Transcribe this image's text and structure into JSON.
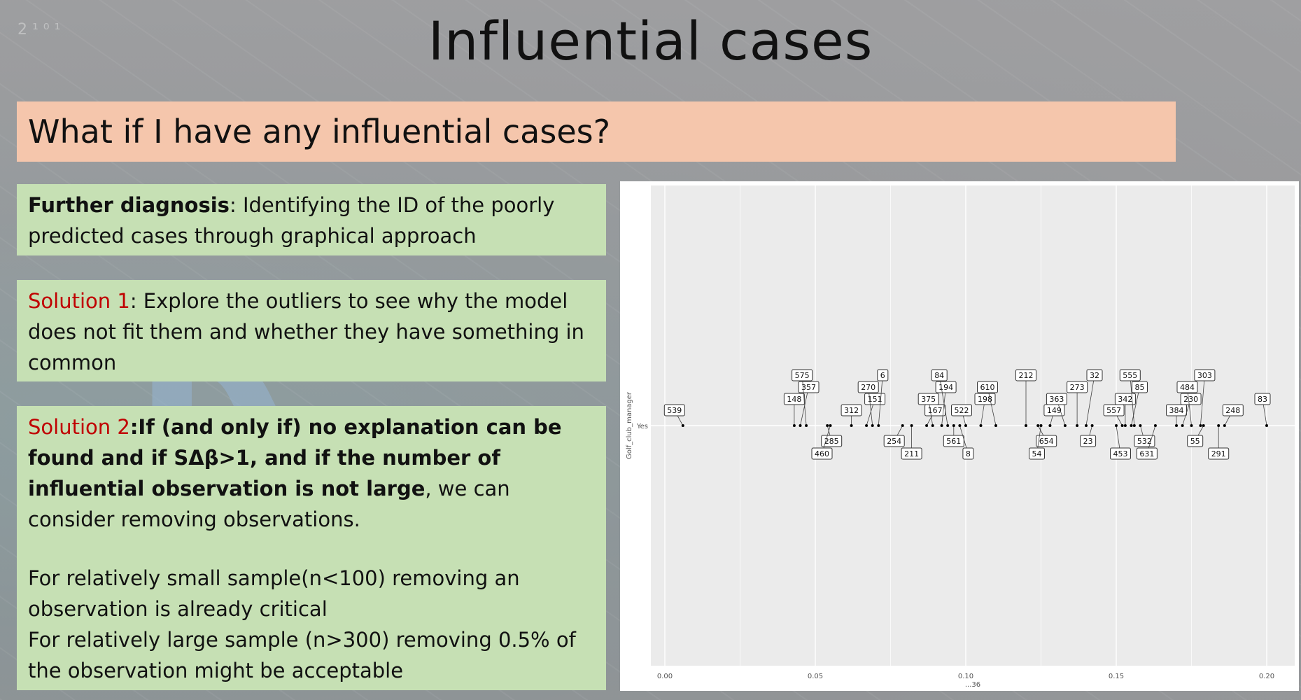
{
  "slide": {
    "title": "Influential cases",
    "question": "What if I have any influential  cases?",
    "box1": {
      "bold": "Further diagnosis",
      "text": ": Identifying the ID of the poorly predicted cases through graphical approach"
    },
    "box2": {
      "red": "Solution 1",
      "text": ": Explore the outliers to see why the model does not fit them and whether they have something in common"
    },
    "box3": {
      "red": "Solution 2",
      "bold_colon": ":",
      "bold1": "If (and only if) no explanation can be found and if SΔβ>1, and if the number of influential observation is not large",
      "text1": ", we can consider removing observations.",
      "line2": "For relatively small sample(n<100) removing an observation is already critical",
      "line3": "For relatively large sample (n>300) removing 0.5% of the observation might be acceptable"
    },
    "colors": {
      "question_bg": "#f5c6ac",
      "box_bg": "#c6e0b4",
      "accent_red": "#c00000"
    }
  },
  "chart_data": {
    "type": "scatter",
    "xlabel": "...36",
    "ylabel": "Golf_club_manager",
    "category": "Yes",
    "xlim": [
      0.0,
      0.2
    ],
    "xticks": [
      "0.00",
      "0.05",
      "0.10",
      "0.15",
      "0.20"
    ],
    "grid": true,
    "points": [
      {
        "id": "539",
        "x": 0.006
      },
      {
        "id": "148",
        "x": 0.043
      },
      {
        "id": "357",
        "x": 0.045
      },
      {
        "id": "575",
        "x": 0.047
      },
      {
        "id": "285",
        "x": 0.054
      },
      {
        "id": "460",
        "x": 0.055
      },
      {
        "id": "312",
        "x": 0.062
      },
      {
        "id": "151",
        "x": 0.067
      },
      {
        "id": "270",
        "x": 0.069
      },
      {
        "id": "6",
        "x": 0.071
      },
      {
        "id": "254",
        "x": 0.079
      },
      {
        "id": "211",
        "x": 0.082
      },
      {
        "id": "167",
        "x": 0.087
      },
      {
        "id": "375",
        "x": 0.089
      },
      {
        "id": "194",
        "x": 0.092
      },
      {
        "id": "84",
        "x": 0.094
      },
      {
        "id": "561",
        "x": 0.096
      },
      {
        "id": "8",
        "x": 0.098
      },
      {
        "id": "522",
        "x": 0.1
      },
      {
        "id": "198",
        "x": 0.105
      },
      {
        "id": "610",
        "x": 0.11
      },
      {
        "id": "212",
        "x": 0.12
      },
      {
        "id": "654",
        "x": 0.124
      },
      {
        "id": "54",
        "x": 0.125
      },
      {
        "id": "149",
        "x": 0.128
      },
      {
        "id": "363",
        "x": 0.133
      },
      {
        "id": "273",
        "x": 0.137
      },
      {
        "id": "32",
        "x": 0.14
      },
      {
        "id": "23",
        "x": 0.142
      },
      {
        "id": "453",
        "x": 0.15
      },
      {
        "id": "557",
        "x": 0.152
      },
      {
        "id": "342",
        "x": 0.153
      },
      {
        "id": "85",
        "x": 0.155
      },
      {
        "id": "555",
        "x": 0.156
      },
      {
        "id": "532",
        "x": 0.158
      },
      {
        "id": "631",
        "x": 0.163
      },
      {
        "id": "384",
        "x": 0.17
      },
      {
        "id": "230",
        "x": 0.172
      },
      {
        "id": "484",
        "x": 0.175
      },
      {
        "id": "303",
        "x": 0.178
      },
      {
        "id": "55",
        "x": 0.179
      },
      {
        "id": "291",
        "x": 0.184
      },
      {
        "id": "248",
        "x": 0.186
      },
      {
        "id": "83",
        "x": 0.2
      }
    ]
  }
}
